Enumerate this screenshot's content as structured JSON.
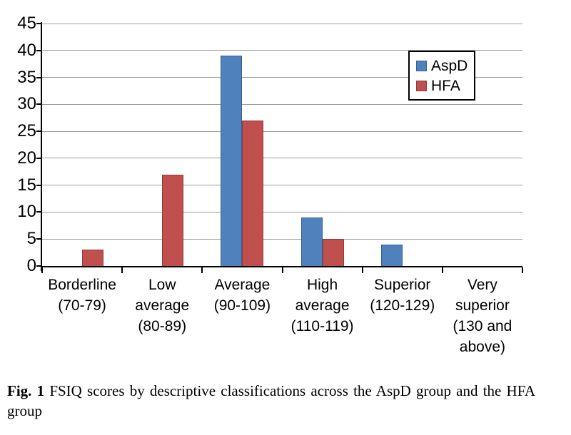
{
  "figure": {
    "caption": {
      "label": "Fig. 1",
      "text": "FSIQ scores by descriptive classifications across the AspD group and the HFA group"
    }
  },
  "chart_data": {
    "type": "bar",
    "title": "",
    "xlabel": "",
    "ylabel": "",
    "ylim": [
      0,
      45
    ],
    "ytick_step": 5,
    "grid": true,
    "legend_position": "top-right",
    "categories": [
      [
        "Borderline",
        "(70-79)"
      ],
      [
        "Low",
        "average",
        "(80-89)"
      ],
      [
        "Average",
        "(90-109)"
      ],
      [
        "High",
        "average",
        "(110-119)"
      ],
      [
        "Superior",
        "(120-129)"
      ],
      [
        "Very",
        "superior",
        "(130 and",
        "above)"
      ]
    ],
    "series": [
      {
        "name": "AspD",
        "color": "#4F81BD",
        "border_color": "#38618C",
        "values": [
          0,
          0,
          39,
          9,
          4,
          0
        ]
      },
      {
        "name": "HFA",
        "color": "#C0504D",
        "border_color": "#8E3B39",
        "values": [
          3,
          17,
          27,
          5,
          0,
          0
        ]
      }
    ]
  }
}
